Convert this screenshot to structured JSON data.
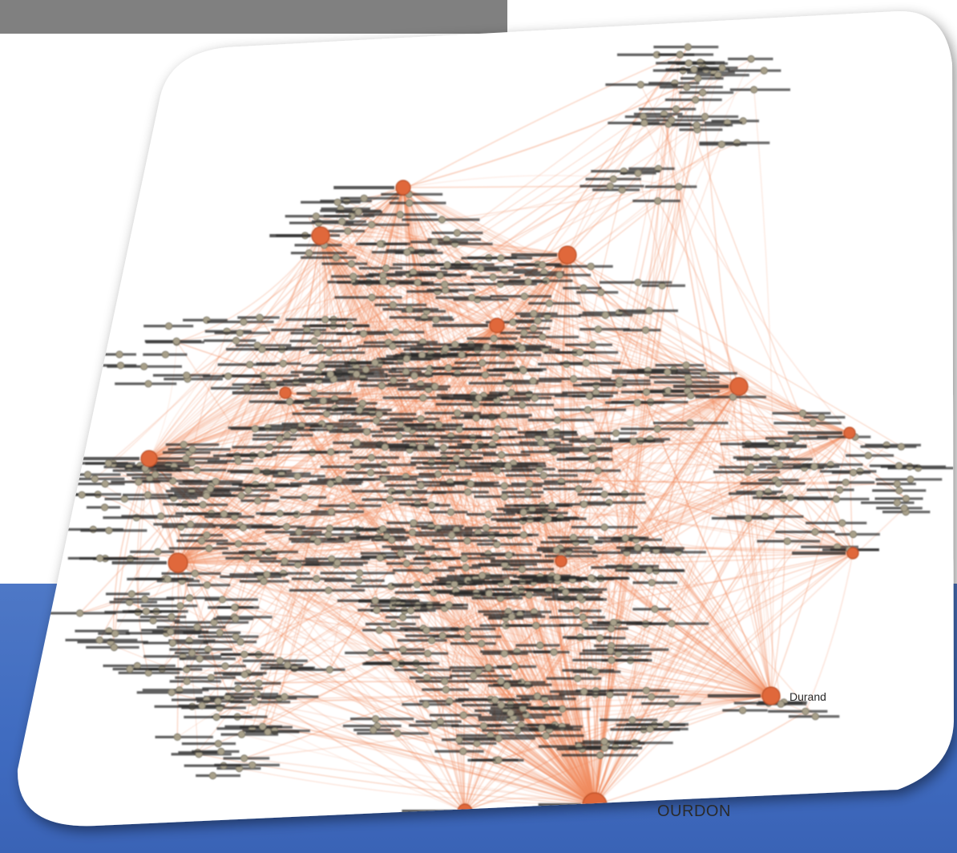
{
  "colors": {
    "top_bar": "#808080",
    "bottom_band": "#4470c4",
    "card": "#ffffff",
    "edge": "#f08a5d",
    "hub_node": "#e0683a",
    "minor_node": "#a8a08a",
    "label": "#2a2a2a"
  },
  "graph": {
    "hubs": [
      {
        "id": "hub-bottom",
        "label": "OURDON"
      },
      {
        "id": "hub-right-low",
        "label": "Durand"
      },
      {
        "id": "hub-top-left",
        "label": ""
      },
      {
        "id": "hub-top-mid",
        "label": ""
      },
      {
        "id": "hub-upper-right",
        "label": ""
      },
      {
        "id": "hub-center",
        "label": ""
      },
      {
        "id": "hub-right",
        "label": ""
      },
      {
        "id": "hub-left",
        "label": ""
      },
      {
        "id": "hub-left-low",
        "label": ""
      }
    ]
  }
}
